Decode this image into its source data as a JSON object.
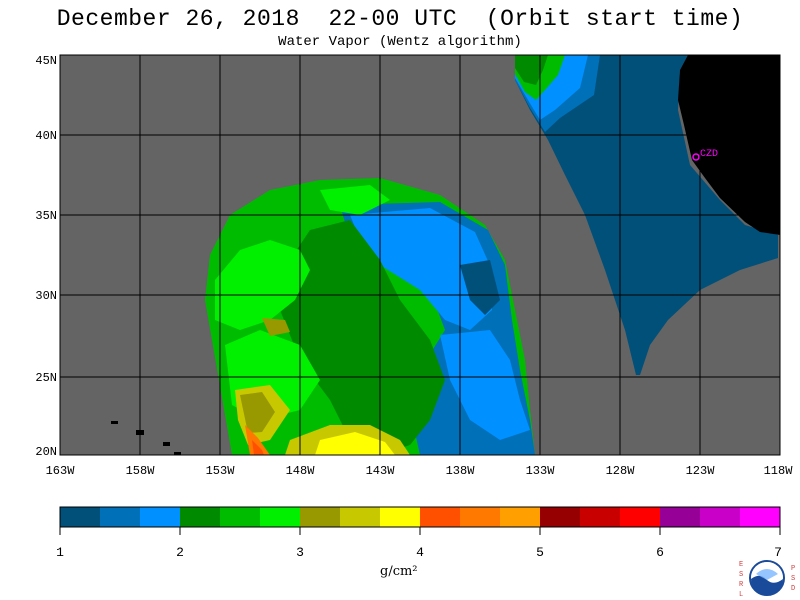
{
  "title": "December 26, 2018  22-00 UTC  (Orbit start time)",
  "subtitle": "Water Vapor (Wentz algorithm)",
  "map": {
    "lat_ticks": [
      "45N",
      "40N",
      "35N",
      "30N",
      "25N",
      "20N"
    ],
    "lon_ticks": [
      "163W",
      "158W",
      "153W",
      "148W",
      "143W",
      "138W",
      "133W",
      "128W",
      "123W",
      "118W"
    ],
    "station_label": "CZD",
    "colors": {
      "no_data": "#646464",
      "land": "#000000",
      "grid": "#000000",
      "station": "#ff00ff"
    }
  },
  "colorbar": {
    "ticks": [
      "1",
      "2",
      "3",
      "4",
      "5",
      "6",
      "7"
    ],
    "unit": "g/cm²",
    "colors": [
      "#00507a",
      "#0070b8",
      "#0090ff",
      "#008a00",
      "#00bc00",
      "#00f000",
      "#989800",
      "#c8c800",
      "#ffff00",
      "#ff5000",
      "#ff7800",
      "#ffa000",
      "#960000",
      "#c80000",
      "#ff0000",
      "#960096",
      "#c800c8",
      "#ff00ff"
    ]
  },
  "logo": {
    "left_letters": "ESRL",
    "right_letters": "PSD",
    "center_text": "NOAA"
  }
}
